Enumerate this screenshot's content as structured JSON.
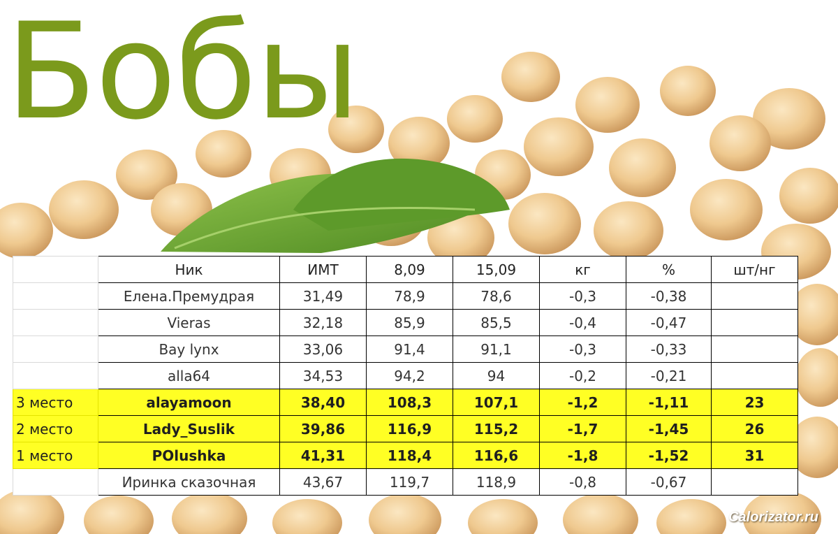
{
  "title": "Бобы",
  "watermark": "Calorizator.ru",
  "table": {
    "headers": [
      "",
      "Ник",
      "ИМТ",
      "8,09",
      "15,09",
      "кг",
      "%",
      "шт/нг"
    ],
    "rows": [
      {
        "place": "",
        "nick": "Елена.Премудрая",
        "imt": "31,49",
        "w1": "78,9",
        "w2": "78,6",
        "kg": "-0,3",
        "pct": "-0,38",
        "count": "",
        "highlight": false
      },
      {
        "place": "",
        "nick": "Vieras",
        "imt": "32,18",
        "w1": "85,9",
        "w2": "85,5",
        "kg": "-0,4",
        "pct": "-0,47",
        "count": "",
        "highlight": false
      },
      {
        "place": "",
        "nick": "Bay lynx",
        "imt": "33,06",
        "w1": "91,4",
        "w2": "91,1",
        "kg": "-0,3",
        "pct": "-0,33",
        "count": "",
        "highlight": false
      },
      {
        "place": "",
        "nick": "alla64",
        "imt": "34,53",
        "w1": "94,2",
        "w2": "94",
        "kg": "-0,2",
        "pct": "-0,21",
        "count": "",
        "highlight": false
      },
      {
        "place": "3 место",
        "nick": "alayamoon",
        "imt": "38,40",
        "w1": "108,3",
        "w2": "107,1",
        "kg": "-1,2",
        "pct": "-1,11",
        "count": "23",
        "highlight": true
      },
      {
        "place": "2 место",
        "nick": "Lady_Suslik",
        "imt": "39,86",
        "w1": "116,9",
        "w2": "115,2",
        "kg": "-1,7",
        "pct": "-1,45",
        "count": "26",
        "highlight": true
      },
      {
        "place": "1 место",
        "nick": "POlushka",
        "imt": "41,31",
        "w1": "118,4",
        "w2": "116,6",
        "kg": "-1,8",
        "pct": "-1,52",
        "count": "31",
        "highlight": true
      },
      {
        "place": "",
        "nick": "Иринка сказочная",
        "imt": "43,67",
        "w1": "119,7",
        "w2": "118,9",
        "kg": "-0,8",
        "pct": "-0,67",
        "count": "",
        "highlight": false
      }
    ]
  },
  "colors": {
    "title": "#7b9a1c",
    "highlight": "#ffff24",
    "bean": "#f0cf9b",
    "leaf": "#6aa532"
  },
  "icons": {
    "background": "soybeans-with-basil-leaf-illustration"
  }
}
